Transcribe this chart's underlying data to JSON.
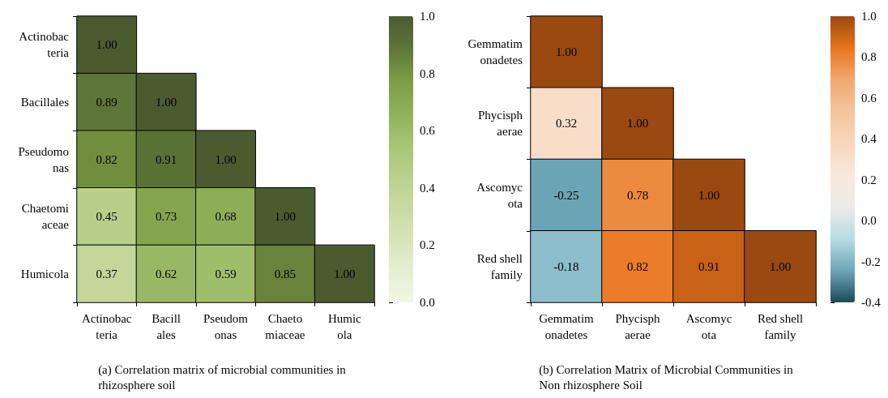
{
  "chart_data": [
    {
      "type": "heatmap",
      "title": "(a) Correlation matrix of microbial communities in\nrhizosphere soil",
      "categories": [
        "Actinobac\nteria",
        "Bacill\nales",
        "Pseudom\nonas",
        "Chaeto\nmiaceae",
        "Humic\nola"
      ],
      "y_categories": [
        "Actinobac\nteria",
        "Bacillales",
        "Pseudomo\nnas",
        "Chaetomi\naceae",
        "Humicola"
      ],
      "cells": [
        [
          1.0,
          null,
          null,
          null,
          null
        ],
        [
          0.89,
          1.0,
          null,
          null,
          null
        ],
        [
          0.82,
          0.91,
          1.0,
          null,
          null
        ],
        [
          0.45,
          0.73,
          0.68,
          1.0,
          null
        ],
        [
          0.37,
          0.62,
          0.59,
          0.85,
          1.0
        ]
      ],
      "cell_labels": [
        [
          "1.00",
          null,
          null,
          null,
          null
        ],
        [
          "0.89",
          "1.00",
          null,
          null,
          null
        ],
        [
          "0.82",
          "0.91",
          "1.00",
          null,
          null
        ],
        [
          "0.45",
          "0.73",
          "0.68",
          "1.00",
          null
        ],
        [
          "0.37",
          "0.62",
          "0.59",
          "0.85",
          "1.00"
        ]
      ],
      "clim": [
        0,
        1
      ],
      "cticks": [
        {
          "value": 0,
          "label": "0.0"
        },
        {
          "value": 0.2,
          "label": "0.2"
        },
        {
          "value": 0.4,
          "label": "0.4"
        },
        {
          "value": 0.6,
          "label": "0.6"
        },
        {
          "value": 0.8,
          "label": "0.8"
        },
        {
          "value": 1,
          "label": "1.0"
        }
      ]
    },
    {
      "type": "heatmap",
      "title": "(b) Correlation Matrix of Microbial Communities in\nNon rhizosphere Soil",
      "categories": [
        "Gemmatim\nonadetes",
        "Phycisph\naerae",
        "Ascomyc\nota",
        "Red shell\nfamily"
      ],
      "y_categories": [
        "Gemmatim\nonadetes",
        "Phycisph\naerae",
        "Ascomyc\nota",
        "Red shell\nfamily"
      ],
      "cells": [
        [
          1.0,
          null,
          null,
          null
        ],
        [
          0.32,
          1.0,
          null,
          null
        ],
        [
          -0.25,
          0.78,
          1.0,
          null
        ],
        [
          -0.18,
          0.82,
          0.91,
          1.0
        ]
      ],
      "cell_labels": [
        [
          "1.00",
          null,
          null,
          null
        ],
        [
          "0.32",
          "1.00",
          null,
          null
        ],
        [
          "-0.25",
          "0.78",
          "1.00",
          null
        ],
        [
          "-0.18",
          "0.82",
          "0.91",
          "1.00"
        ]
      ],
      "clim": [
        -0.4,
        1
      ],
      "cticks": [
        {
          "value": -0.4,
          "label": "-0.4"
        },
        {
          "value": -0.2,
          "label": "-0.2"
        },
        {
          "value": 0,
          "label": "0.0"
        },
        {
          "value": 0.2,
          "label": "0.2"
        },
        {
          "value": 0.4,
          "label": "0.4"
        },
        {
          "value": 0.6,
          "label": "0.6"
        },
        {
          "value": 0.8,
          "label": "0.8"
        },
        {
          "value": 1,
          "label": "1.0"
        }
      ]
    }
  ]
}
